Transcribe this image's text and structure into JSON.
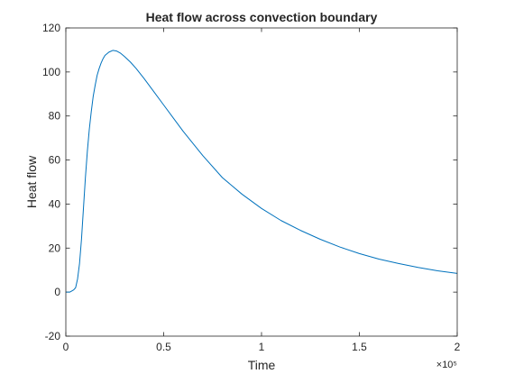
{
  "chart_data": {
    "type": "line",
    "title": "Heat flow across convection boundary",
    "xlabel": "Time",
    "ylabel": "Heat flow",
    "x_exponent_label": "×10⁵",
    "xlim": [
      0,
      200000
    ],
    "ylim": [
      -20,
      120
    ],
    "xticks": [
      0,
      50000,
      100000,
      150000,
      200000
    ],
    "xtick_labels": [
      "0",
      "0.5",
      "1",
      "1.5",
      "2"
    ],
    "yticks": [
      -20,
      0,
      20,
      40,
      60,
      80,
      100,
      120
    ],
    "ytick_labels": [
      "-20",
      "0",
      "20",
      "40",
      "60",
      "80",
      "100",
      "120"
    ],
    "grid": false,
    "line_color": "#0072BD",
    "series": [
      {
        "x": [
          0,
          2000,
          4000,
          5000,
          6000,
          7000,
          8000,
          9000,
          10000,
          11000,
          12000,
          13000,
          14000,
          15000,
          16000,
          17000,
          18000,
          19000,
          20000,
          22000,
          24000,
          26000,
          28000,
          30000,
          33000,
          36000,
          40000,
          45000,
          50000,
          55000,
          60000,
          70000,
          80000,
          90000,
          100000,
          110000,
          120000,
          130000,
          140000,
          150000,
          160000,
          170000,
          180000,
          190000,
          200000
        ],
        "y": [
          0,
          0,
          1,
          2,
          6,
          13,
          24,
          38,
          52,
          64,
          74,
          82,
          89,
          94,
          98.5,
          101.5,
          104,
          106,
          107.5,
          109,
          109.8,
          109.5,
          108.5,
          107,
          104.5,
          101.5,
          97,
          91,
          85,
          79,
          73,
          62,
          52,
          44.5,
          38,
          32.5,
          28,
          24,
          20.5,
          17.5,
          15,
          13,
          11.2,
          9.7,
          8.5
        ]
      }
    ]
  }
}
